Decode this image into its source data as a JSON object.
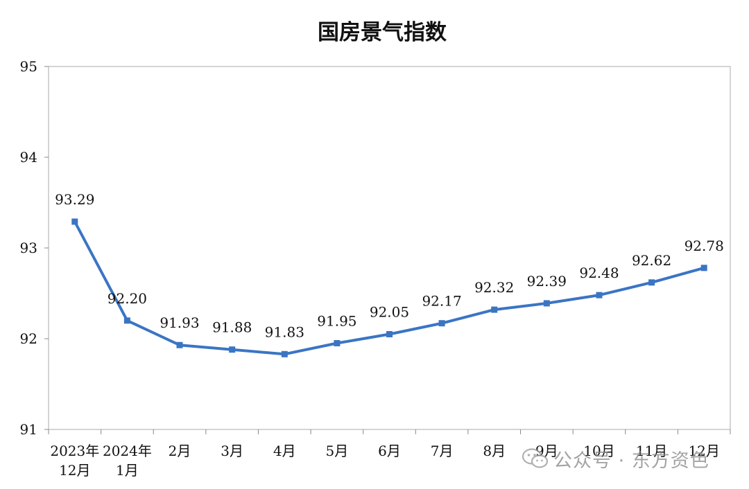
{
  "chart_data": {
    "type": "line",
    "title": "国房景气指数",
    "xlabel": "",
    "ylabel": "",
    "categories": [
      [
        "2023年",
        "12月"
      ],
      [
        "2024年",
        "1月"
      ],
      [
        "2月"
      ],
      [
        "3月"
      ],
      [
        "4月"
      ],
      [
        "5月"
      ],
      [
        "6月"
      ],
      [
        "7月"
      ],
      [
        "8月"
      ],
      [
        "9月"
      ],
      [
        "10月"
      ],
      [
        "11月"
      ],
      [
        "12月"
      ]
    ],
    "series": [
      {
        "values": [
          93.29,
          92.2,
          91.93,
          91.88,
          91.83,
          91.95,
          92.05,
          92.17,
          92.32,
          92.39,
          92.48,
          92.62,
          92.78
        ],
        "labels": [
          "93.29",
          "92.20",
          "91.93",
          "91.88",
          "91.83",
          "91.95",
          "92.05",
          "92.17",
          "92.32",
          "92.39",
          "92.48",
          "92.62",
          "92.78"
        ],
        "color": "#3a75c4"
      }
    ],
    "ylim": [
      91,
      95
    ],
    "yticks": [
      91,
      92,
      93,
      94,
      95
    ],
    "grid": false,
    "legend": "none"
  },
  "watermark": {
    "text": "公众号 · 东方资色",
    "icon": "wechat-icon"
  }
}
